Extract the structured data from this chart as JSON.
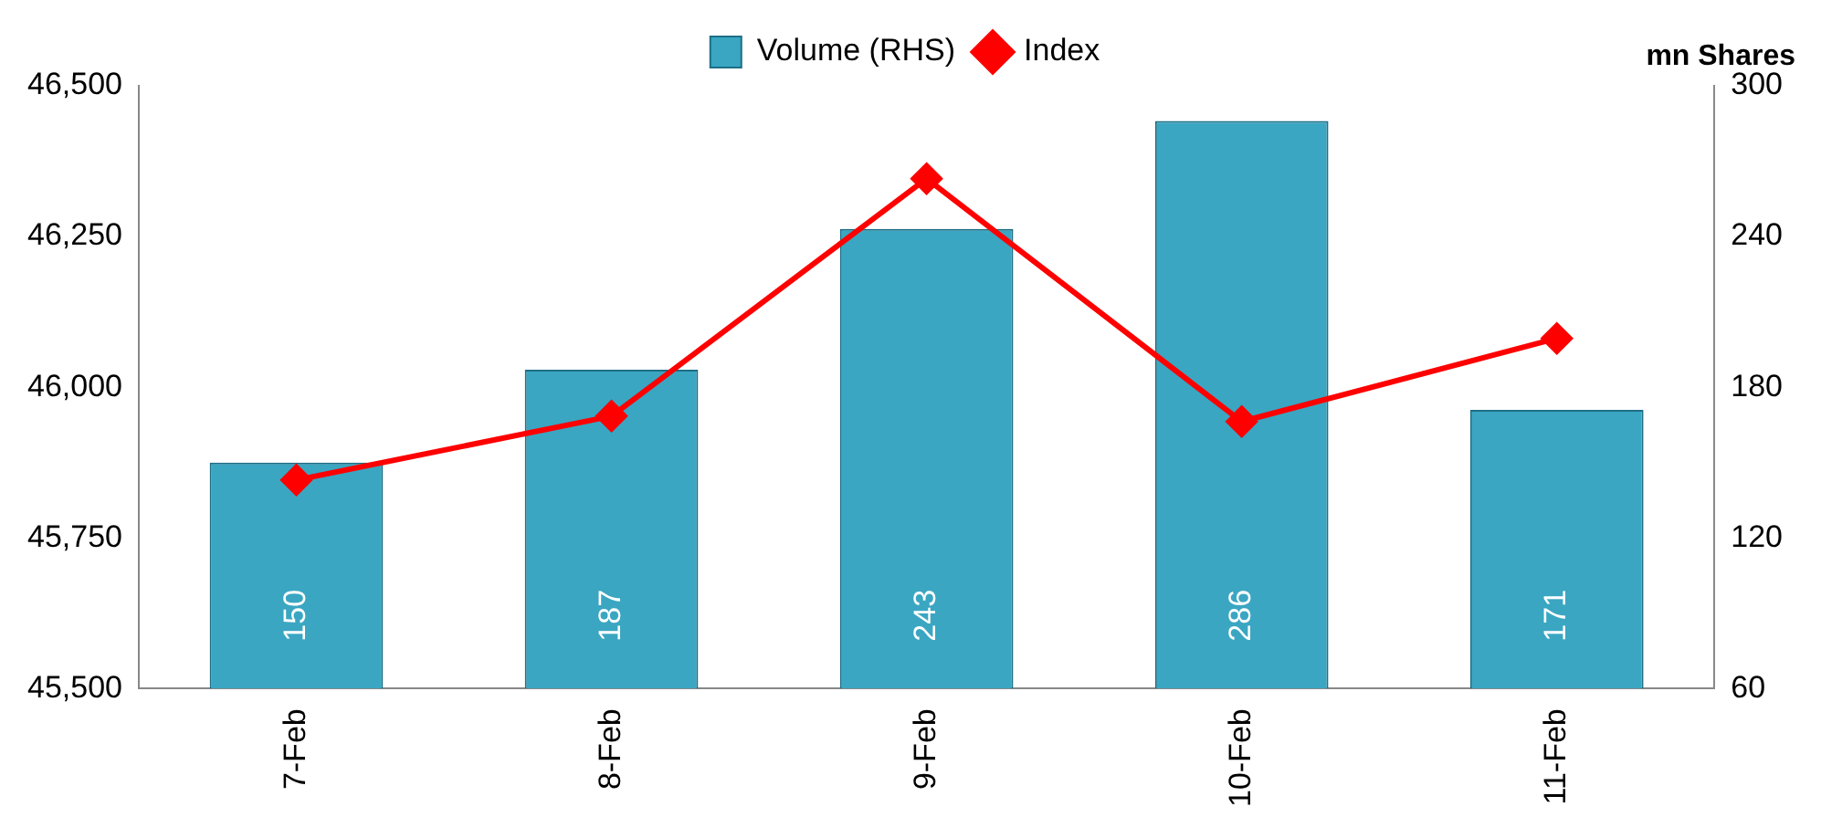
{
  "chart_data": {
    "type": "bar",
    "categories": [
      "7-Feb",
      "8-Feb",
      "9-Feb",
      "10-Feb",
      "11-Feb"
    ],
    "y2label": "mn Shares",
    "legend": "top",
    "grid": false,
    "marker": "diamond",
    "series": [
      {
        "name": "Volume (RHS)",
        "axis": "y2",
        "color": "#3aa6c2",
        "values": [
          150,
          187,
          243,
          286,
          171
        ],
        "value_labels": [
          "150",
          "187",
          "243",
          "286",
          "171"
        ]
      },
      {
        "name": "Index",
        "type": "line",
        "color": "#ff0000",
        "values": [
          45846,
          45952,
          46346,
          45943,
          46081
        ]
      }
    ],
    "ylim": [
      45500,
      46500
    ],
    "yticks": [
      {
        "value": 45500,
        "label": "45,500"
      },
      {
        "value": 45750,
        "label": "45,750"
      },
      {
        "value": 46000,
        "label": "46,000"
      },
      {
        "value": 46250,
        "label": "46,250"
      },
      {
        "value": 46500,
        "label": "46,500"
      }
    ],
    "y2lim": [
      60,
      300
    ],
    "y2ticks": [
      60,
      120,
      180,
      240,
      300
    ]
  }
}
